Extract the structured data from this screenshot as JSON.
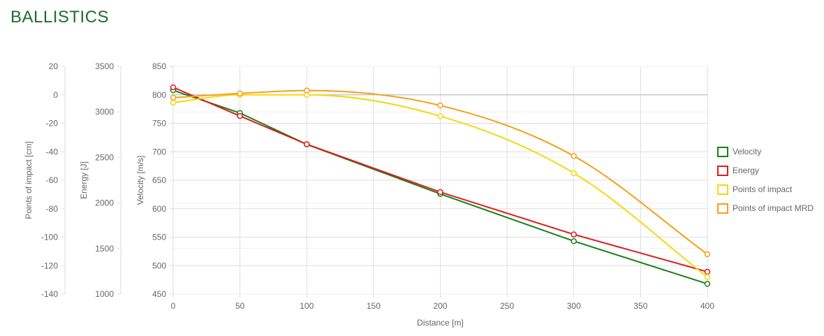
{
  "page": {
    "title": "BALLISTICS"
  },
  "colors": {
    "title": "#1b6e2c",
    "grid": "#dddddd",
    "zero_line": "#b5b5b5",
    "text": "#666666"
  },
  "chart_data": {
    "type": "line",
    "x": [
      0,
      50,
      100,
      200,
      300,
      400
    ],
    "xlabel": "Distance [m]",
    "xlim": [
      0,
      400
    ],
    "xticks": [
      0,
      50,
      100,
      150,
      200,
      250,
      300,
      350,
      400
    ],
    "grid": true,
    "legend_position": "right",
    "axes": [
      {
        "id": "poi",
        "label": "Points of impact [cm]",
        "min": -140,
        "max": 20,
        "ticks": [
          20,
          0,
          -20,
          -40,
          -60,
          -80,
          -100,
          -120,
          -140
        ]
      },
      {
        "id": "energy",
        "label": "Energy [J]",
        "min": 1000,
        "max": 3500,
        "ticks": [
          3500,
          3000,
          2500,
          2000,
          1500,
          1000
        ]
      },
      {
        "id": "velocity",
        "label": "Velocity [m/s]",
        "min": 450,
        "max": 850,
        "ticks": [
          850,
          800,
          750,
          700,
          650,
          600,
          550,
          500,
          450
        ]
      }
    ],
    "series": [
      {
        "name": "Velocity",
        "axis": "velocity",
        "color": "#1a7f1a",
        "values": [
          808,
          768,
          713,
          626,
          543,
          468
        ]
      },
      {
        "name": "Energy",
        "axis": "energy",
        "color": "#dd1c1c",
        "values": [
          3270,
          2955,
          2645,
          2120,
          1655,
          1245
        ]
      },
      {
        "name": "Points of impact",
        "axis": "poi",
        "color": "#f5d80f",
        "values": [
          -5.5,
          0,
          0,
          -15,
          -55,
          -128
        ]
      },
      {
        "name": "Points of impact MRD",
        "axis": "poi",
        "color": "#f5a01a",
        "values": [
          -2,
          1,
          3,
          -7.5,
          -43,
          -112
        ]
      }
    ]
  }
}
